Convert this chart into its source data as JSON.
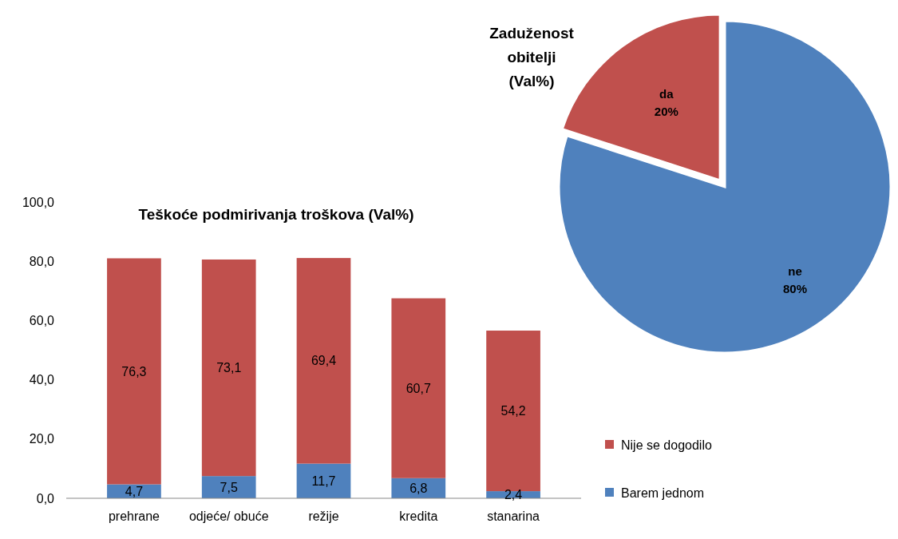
{
  "chart_data": [
    {
      "type": "bar",
      "title": "Teškoće podmirivanja troškova (Val%)",
      "categories": [
        "prehrane",
        "odjeće/ obuće",
        "režije",
        "kredita",
        "stanarina"
      ],
      "stacked": true,
      "ylim": [
        0,
        100
      ],
      "yticks": [
        {
          "value": 0,
          "label": "0,0"
        },
        {
          "value": 20,
          "label": "20,0"
        },
        {
          "value": 40,
          "label": "40,0"
        },
        {
          "value": 60,
          "label": "60,0"
        },
        {
          "value": 80,
          "label": "80,0"
        },
        {
          "value": 100,
          "label": "100,0"
        }
      ],
      "legend": "right",
      "grid": false,
      "series": [
        {
          "name": "Barem jednom",
          "color": "#4f81bd",
          "values": [
            4.7,
            7.5,
            11.7,
            6.8,
            2.4
          ],
          "value_labels": [
            "4,7",
            "7,5",
            "11,7",
            "6,8",
            "2,4"
          ]
        },
        {
          "name": "Nije se dogodilo",
          "color": "#c0504d",
          "values": [
            76.3,
            73.1,
            69.4,
            60.7,
            54.2
          ],
          "value_labels": [
            "76,3",
            "73,1",
            "69,4",
            "60,7",
            "54,2"
          ]
        }
      ]
    },
    {
      "type": "pie",
      "title": "Zaduženost obitelji (Val%)",
      "categories": [
        "da",
        "ne"
      ],
      "values": [
        20,
        80
      ],
      "colors": [
        "#c0504d",
        "#4f81bd"
      ],
      "value_labels": [
        "20%",
        "80%"
      ]
    }
  ]
}
